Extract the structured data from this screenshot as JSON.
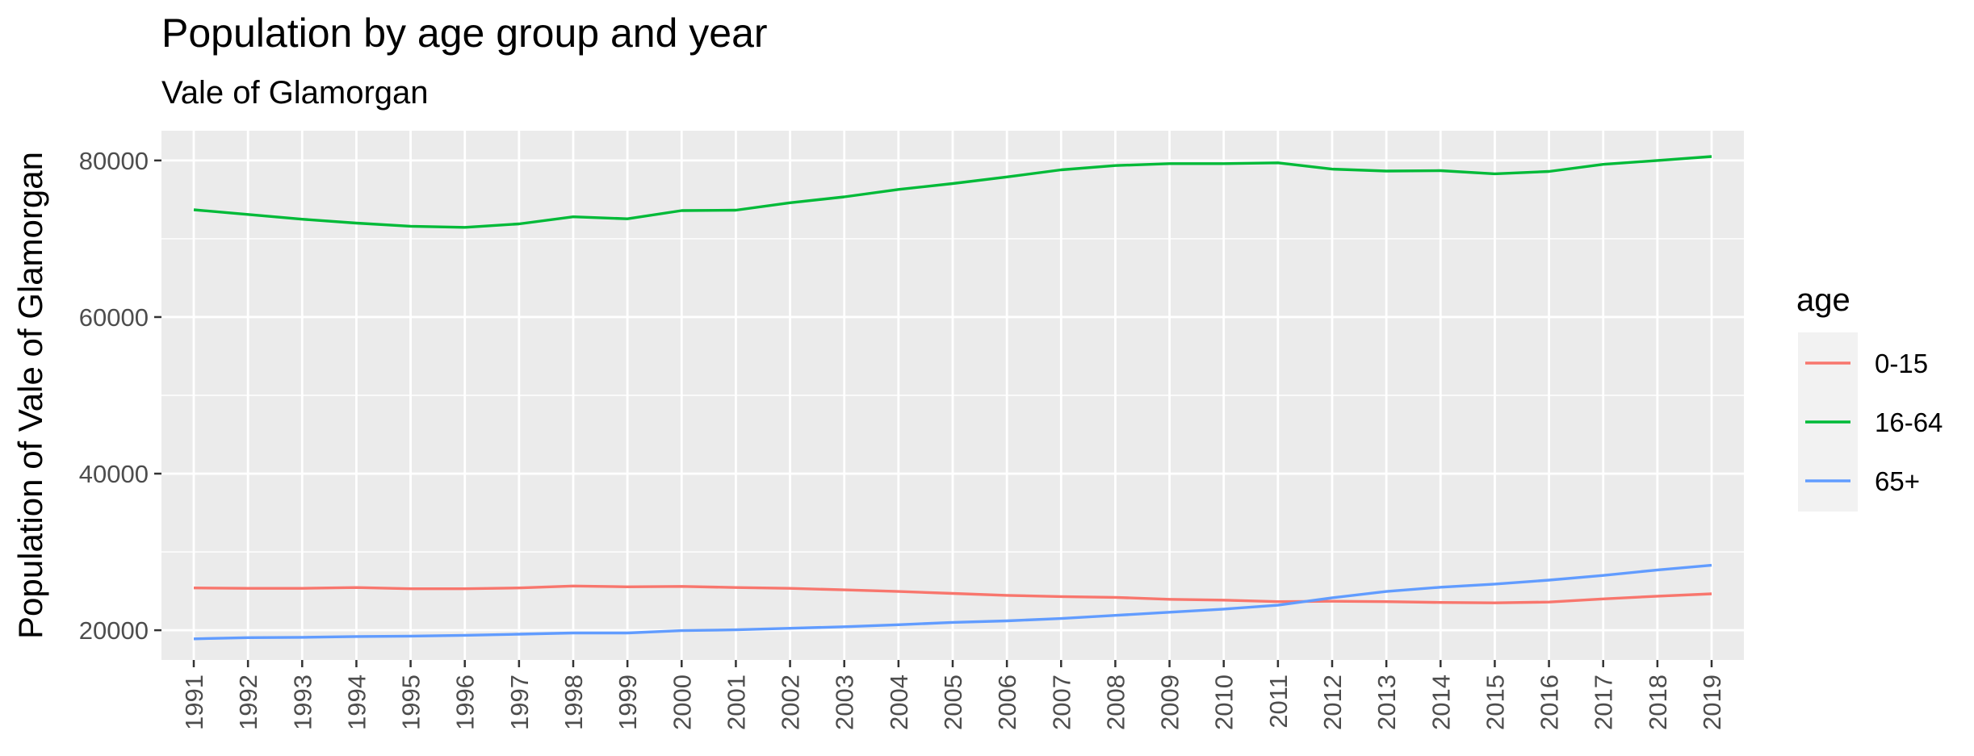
{
  "chart_data": {
    "type": "line",
    "title": "Population by age group and year",
    "subtitle": "Vale of Glamorgan",
    "xlabel": "",
    "ylabel": "Population of Vale of Glamorgan",
    "x": [
      "1991",
      "1992",
      "1993",
      "1994",
      "1995",
      "1996",
      "1997",
      "1998",
      "1999",
      "2000",
      "2001",
      "2002",
      "2003",
      "2004",
      "2005",
      "2006",
      "2007",
      "2008",
      "2009",
      "2010",
      "2011",
      "2012",
      "2013",
      "2014",
      "2015",
      "2016",
      "2017",
      "2018",
      "2019"
    ],
    "ylim": [
      16200,
      83800
    ],
    "yticks": [
      20000,
      40000,
      60000,
      80000
    ],
    "ytick_labels": [
      "20000",
      "40000",
      "60000",
      "80000"
    ],
    "grid": true,
    "legend": {
      "title": "age",
      "position": "right"
    },
    "series": [
      {
        "name": "0-15",
        "color": "#F8766D",
        "values": [
          25400,
          25350,
          25350,
          25450,
          25300,
          25300,
          25400,
          25650,
          25550,
          25600,
          25450,
          25350,
          25150,
          24950,
          24700,
          24450,
          24300,
          24200,
          23950,
          23850,
          23650,
          23700,
          23650,
          23550,
          23500,
          23600,
          24000,
          24350,
          24650
        ]
      },
      {
        "name": "16-64",
        "color": "#00BA38",
        "values": [
          73700,
          73100,
          72500,
          72000,
          71600,
          71450,
          71900,
          72800,
          72550,
          73600,
          73650,
          74600,
          75350,
          76300,
          77050,
          77900,
          78800,
          79350,
          79600,
          79600,
          79700,
          78900,
          78650,
          78700,
          78300,
          78600,
          79500,
          80000,
          80500
        ]
      },
      {
        "name": "65+",
        "color": "#619CFF",
        "values": [
          18900,
          19050,
          19100,
          19200,
          19250,
          19350,
          19500,
          19650,
          19650,
          19950,
          20050,
          20250,
          20450,
          20700,
          21000,
          21200,
          21500,
          21900,
          22300,
          22700,
          23200,
          24150,
          24950,
          25500,
          25900,
          26400,
          27000,
          27700,
          28300
        ]
      }
    ]
  }
}
